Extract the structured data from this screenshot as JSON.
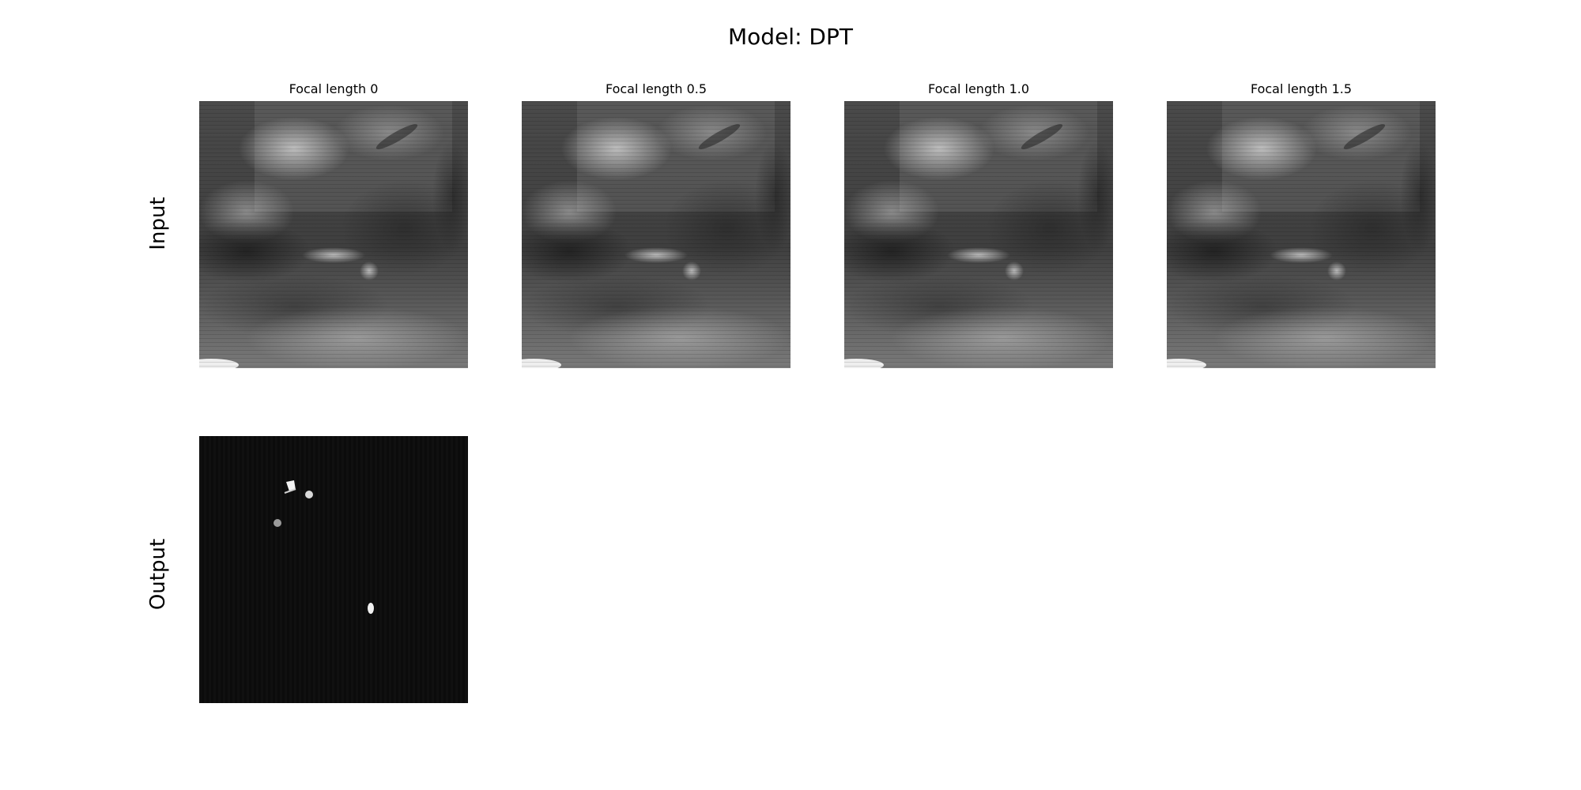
{
  "figure": {
    "title": "Model: DPT"
  },
  "rows": [
    {
      "label": "Input"
    },
    {
      "label": "Output"
    }
  ],
  "columns": [
    {
      "title": "Focal length 0"
    },
    {
      "title": "Focal length 0.5"
    },
    {
      "title": "Focal length 1.0"
    },
    {
      "title": "Focal length 1.5"
    }
  ],
  "panels": {
    "input_count": 4,
    "output_count": 1
  },
  "colors": {
    "background": "#ffffff",
    "input_base": "#5a5a5a",
    "output_base": "#0b0b0b",
    "output_blob": "#f0f0f0"
  }
}
